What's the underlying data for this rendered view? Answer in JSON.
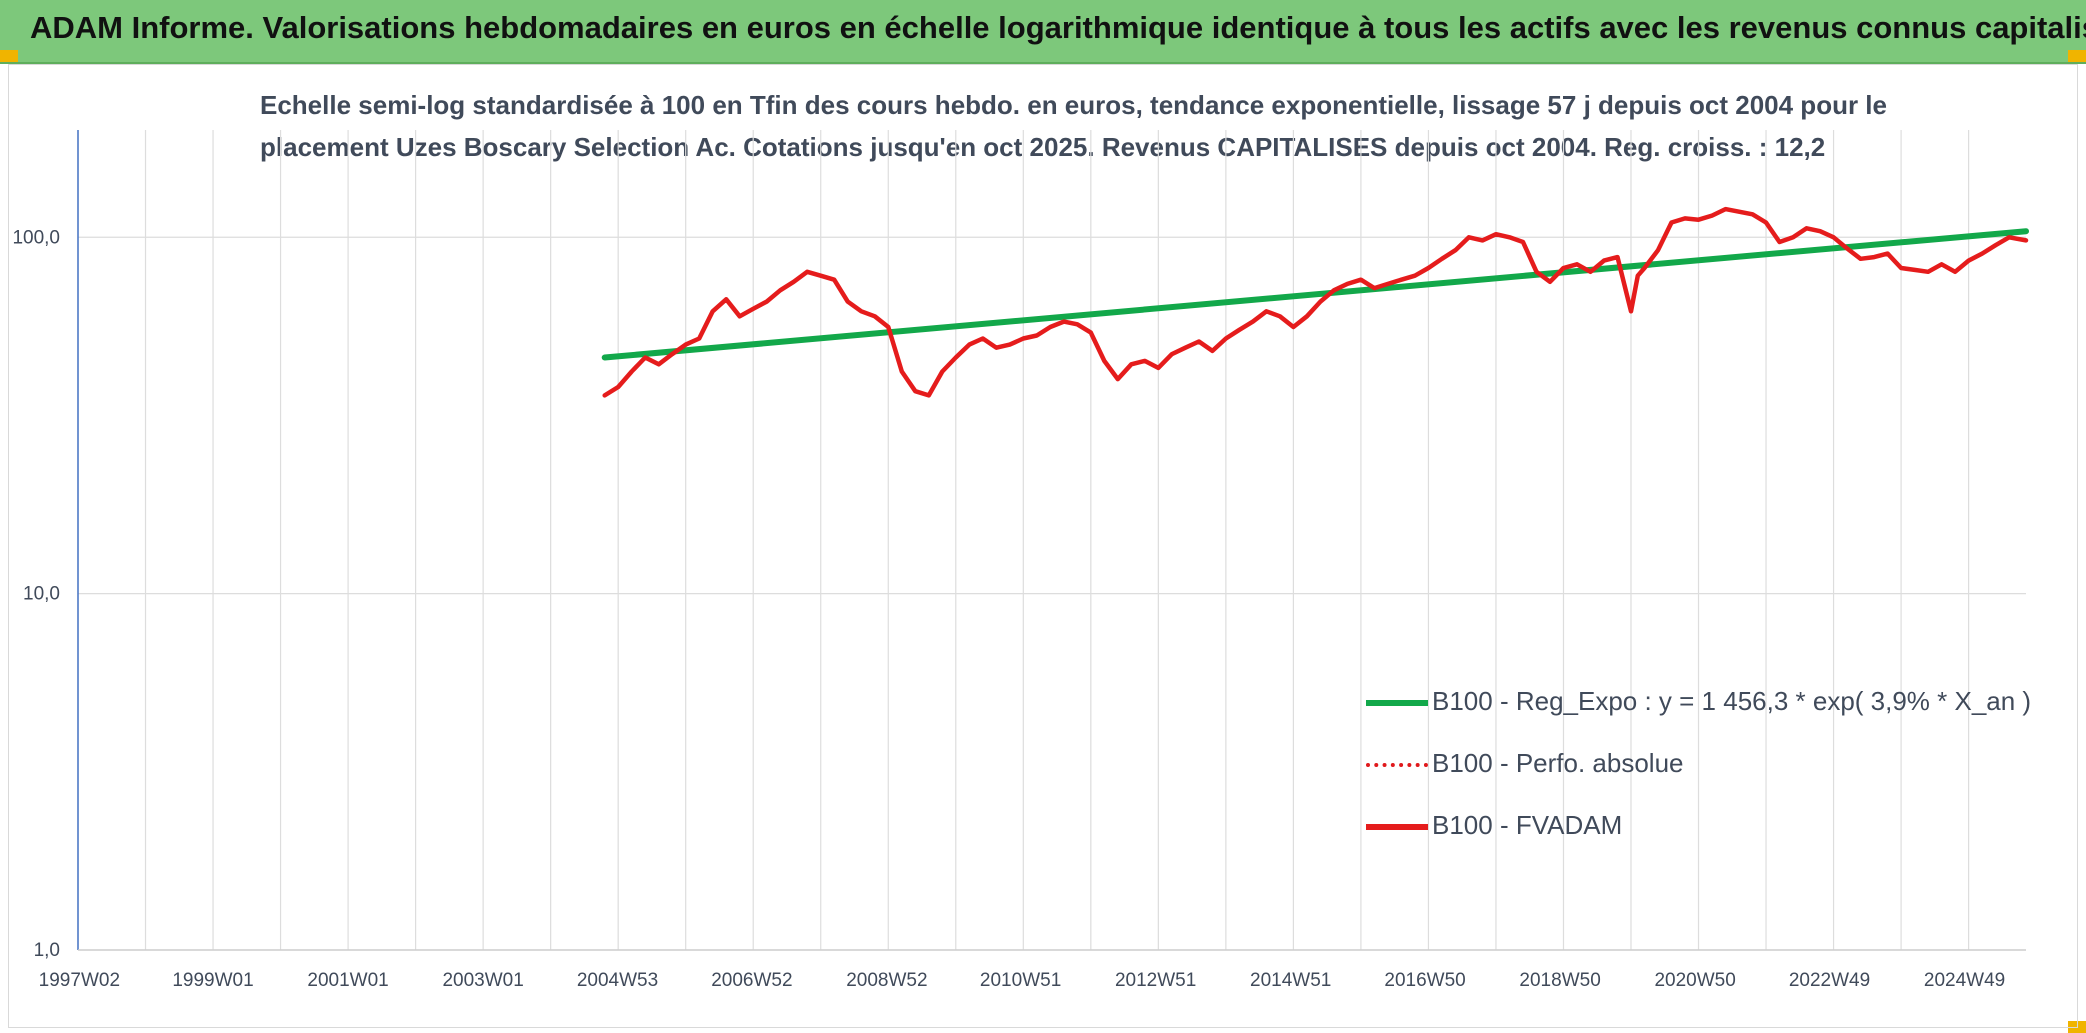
{
  "header": {
    "title": "ADAM Informe. Valorisations hebdomadaires en euros en échelle logarithmique identique à tous les actifs avec les revenus connus capitalisés"
  },
  "colors": {
    "header_bg": "#7dc87b",
    "regression": "#12a84a",
    "series": "#e51c1c",
    "grid": "#dddddd",
    "axis": "#4472c4",
    "corner": "#f0b400"
  },
  "chart_data": {
    "type": "line",
    "title_line1": "Echelle semi-log standardisée à 100 en Tfin des cours hebdo. en euros, tendance exponentielle, lissage 57 j depuis oct 2004 pour le",
    "title_line2": "placement Uzes Boscary Selection Ac. Cotations jusqu'en oct 2025. Revenus CAPITALISES depuis oct 2004. Reg. croiss. : 12,2",
    "y_scale": "log",
    "ylim": [
      1,
      200
    ],
    "xlim": [
      1997.0,
      2025.85
    ],
    "y_tick_labels": [
      "100,0",
      "10,0",
      "1,0"
    ],
    "y_tick_values": [
      100,
      10,
      1
    ],
    "x_tick_labels": [
      "1997W02",
      "1999W01",
      "2001W01",
      "2003W01",
      "2004W53",
      "2006W52",
      "2008W52",
      "2010W51",
      "2012W51",
      "2014W51",
      "2016W50",
      "2018W50",
      "2020W50",
      "2022W49",
      "2024W49"
    ],
    "x_tick_values": [
      1997.02,
      1999.0,
      2001.0,
      2003.0,
      2004.99,
      2006.98,
      2008.98,
      2010.96,
      2012.96,
      2014.96,
      2016.95,
      2018.95,
      2020.95,
      2022.94,
      2024.94
    ],
    "grid": true,
    "legend_position": "bottom-right",
    "legend": [
      "B100 - Reg_Expo : y = 1 456,3 * exp( 3,9% *  X_an )",
      "B100 - Perfo. absolue",
      "B100 - FVADAM"
    ],
    "series": [
      {
        "name": "B100 - Reg_Expo : y = 1 456,3 * exp( 3,9% *  X_an )",
        "style": "solid",
        "color": "#12a84a",
        "x": [
          2004.8,
          2025.85
        ],
        "y": [
          46,
          104
        ]
      },
      {
        "name": "B100 - FVADAM",
        "style": "solid",
        "color": "#e51c1c",
        "x": [
          2004.8,
          2005.0,
          2005.2,
          2005.4,
          2005.6,
          2005.8,
          2006.0,
          2006.2,
          2006.4,
          2006.6,
          2006.8,
          2007.0,
          2007.2,
          2007.4,
          2007.6,
          2007.8,
          2008.0,
          2008.2,
          2008.4,
          2008.6,
          2008.8,
          2009.0,
          2009.2,
          2009.4,
          2009.6,
          2009.8,
          2010.0,
          2010.2,
          2010.4,
          2010.6,
          2010.8,
          2011.0,
          2011.2,
          2011.4,
          2011.6,
          2011.8,
          2012.0,
          2012.2,
          2012.4,
          2012.6,
          2012.8,
          2013.0,
          2013.2,
          2013.4,
          2013.6,
          2013.8,
          2014.0,
          2014.2,
          2014.4,
          2014.6,
          2014.8,
          2015.0,
          2015.2,
          2015.4,
          2015.6,
          2015.8,
          2016.0,
          2016.2,
          2016.4,
          2016.6,
          2016.8,
          2017.0,
          2017.2,
          2017.4,
          2017.6,
          2017.8,
          2018.0,
          2018.2,
          2018.4,
          2018.6,
          2018.8,
          2019.0,
          2019.2,
          2019.4,
          2019.6,
          2019.8,
          2020.0,
          2020.1,
          2020.2,
          2020.4,
          2020.6,
          2020.8,
          2021.0,
          2021.2,
          2021.4,
          2021.6,
          2021.8,
          2022.0,
          2022.2,
          2022.4,
          2022.6,
          2022.8,
          2023.0,
          2023.2,
          2023.4,
          2023.6,
          2023.8,
          2024.0,
          2024.2,
          2024.4,
          2024.6,
          2024.8,
          2025.0,
          2025.2,
          2025.4,
          2025.6,
          2025.85
        ],
        "y": [
          36,
          38,
          42,
          46,
          44,
          47,
          50,
          52,
          62,
          67,
          60,
          63,
          66,
          71,
          75,
          80,
          78,
          76,
          66,
          62,
          60,
          56,
          42,
          37,
          36,
          42,
          46,
          50,
          52,
          49,
          50,
          52,
          53,
          56,
          58,
          57,
          54,
          45,
          40,
          44,
          45,
          43,
          47,
          49,
          51,
          48,
          52,
          55,
          58,
          62,
          60,
          56,
          60,
          66,
          71,
          74,
          76,
          72,
          74,
          76,
          78,
          82,
          87,
          92,
          100,
          98,
          102,
          100,
          97,
          80,
          75,
          82,
          84,
          80,
          86,
          88,
          62,
          78,
          82,
          92,
          110,
          113,
          112,
          115,
          120,
          118,
          116,
          110,
          97,
          100,
          106,
          104,
          100,
          93,
          87,
          88,
          90,
          82,
          81,
          80,
          84,
          80,
          86,
          90,
          95,
          100,
          98
        ]
      }
    ]
  }
}
